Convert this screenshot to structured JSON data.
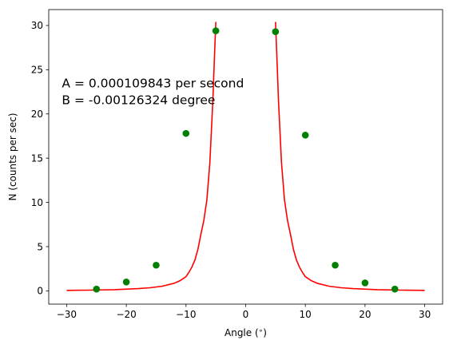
{
  "chart_data": {
    "type": "scatter",
    "xlabel": "Angle ($^\\circ$)",
    "xlabel_display": "Angle (",
    "xlabel_degree": "∘",
    "xlabel_close": ")",
    "ylabel": "N (counts per sec)",
    "xlim": [
      -33,
      33
    ],
    "ylim": [
      -1.5,
      31.8
    ],
    "x_ticks": [
      -30,
      -20,
      -10,
      0,
      10,
      20,
      30
    ],
    "x_tick_labels": [
      "−30",
      "−20",
      "−10",
      "0",
      "10",
      "20",
      "30"
    ],
    "y_ticks": [
      0,
      5,
      10,
      15,
      20,
      25,
      30
    ],
    "y_tick_labels": [
      "0",
      "5",
      "10",
      "15",
      "20",
      "25",
      "30"
    ],
    "grid": false,
    "annotations": [
      "A = 0.000109843 per second",
      "B = -0.00126324 degree"
    ],
    "series": [
      {
        "kind": "points",
        "color": "#008000",
        "x": [
          -25,
          -20,
          -15,
          -10,
          -5,
          5,
          10,
          15,
          20,
          25
        ],
        "y": [
          0.2,
          1.0,
          2.9,
          17.8,
          29.4,
          29.3,
          17.6,
          2.9,
          0.9,
          0.2
        ]
      },
      {
        "kind": "line",
        "color": "#ff0000",
        "x": [
          -30,
          -26,
          -22,
          -18,
          -16,
          -14,
          -12,
          -11,
          -10,
          -9.5,
          -9,
          -8.5,
          -8,
          -7.5,
          -7,
          -6.5,
          -6,
          -5.5,
          -5.2,
          -5.0
        ],
        "y": [
          0.05,
          0.08,
          0.13,
          0.25,
          0.35,
          0.52,
          0.85,
          1.15,
          1.6,
          2.1,
          2.7,
          3.5,
          4.7,
          6.4,
          8.0,
          10.3,
          14.5,
          21.5,
          27.0,
          30.4
        ]
      },
      {
        "kind": "line",
        "color": "#ff0000",
        "x": [
          5.0,
          5.2,
          5.5,
          6,
          6.5,
          7,
          7.5,
          8,
          8.5,
          9,
          9.5,
          10,
          11,
          12,
          14,
          16,
          18,
          22,
          26,
          30
        ],
        "y": [
          30.4,
          27.0,
          21.5,
          14.5,
          10.3,
          8.0,
          6.4,
          4.7,
          3.5,
          2.7,
          2.1,
          1.6,
          1.15,
          0.85,
          0.52,
          0.35,
          0.25,
          0.13,
          0.08,
          0.05
        ]
      }
    ]
  }
}
